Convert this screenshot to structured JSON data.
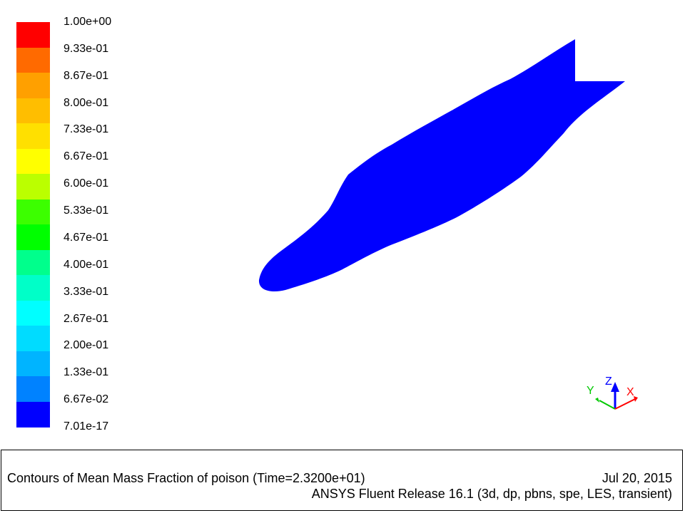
{
  "colorbar": {
    "labels": [
      "1.00e+00",
      "9.33e-01",
      "8.67e-01",
      "8.00e-01",
      "7.33e-01",
      "6.67e-01",
      "6.00e-01",
      "5.33e-01",
      "4.67e-01",
      "4.00e-01",
      "3.33e-01",
      "2.67e-01",
      "2.00e-01",
      "1.33e-01",
      "6.67e-02",
      "7.01e-17"
    ],
    "colors_top_to_bottom": [
      "#ff0000",
      "#ff6a00",
      "#ffa000",
      "#ffbe00",
      "#ffe000",
      "#ffff00",
      "#bbff00",
      "#3cff00",
      "#00ff00",
      "#00ff8c",
      "#00ffc8",
      "#00ffff",
      "#00dcff",
      "#00b4ff",
      "#0082ff",
      "#0000ff"
    ]
  },
  "plume": {
    "color": "#0000ff"
  },
  "triad": {
    "z_label": "Z",
    "y_label": "Y",
    "x_label": "X",
    "z_color": "#0000ff",
    "y_color": "#00c800",
    "x_color": "#ff0000"
  },
  "info": {
    "caption": "Contours of Mean Mass Fraction of poison  (Time=2.3200e+01)",
    "date": "Jul 20, 2015",
    "release": "ANSYS Fluent Release 16.1 (3d, dp, pbns, spe, LES, transient)"
  }
}
